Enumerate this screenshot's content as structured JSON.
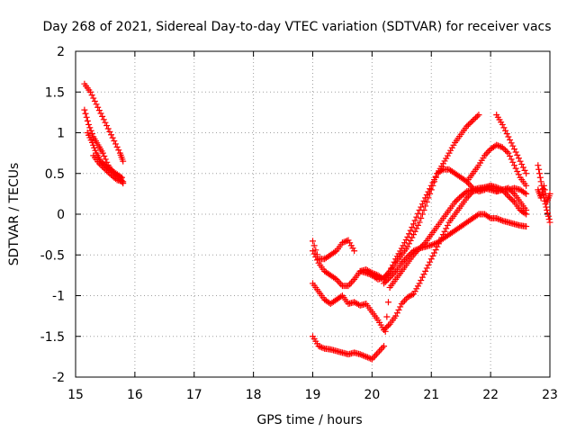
{
  "chart_data": {
    "type": "scatter",
    "title": "Day 268 of 2021, Sidereal Day-to-day VTEC variation (SDTVAR) for receiver vacs",
    "xlabel": "GPS time / hours",
    "ylabel": "SDTVAR / TECUs",
    "xlim": [
      15,
      23
    ],
    "ylim": [
      -2,
      2
    ],
    "xticks": [
      "15",
      "16",
      "17",
      "18",
      "19",
      "20",
      "21",
      "22",
      "23"
    ],
    "yticks": [
      "2",
      "1.5",
      "1",
      "0.5",
      "0",
      "-0.5",
      "-1",
      "-1.5",
      "-2"
    ],
    "grid": true,
    "marker": "plus",
    "color": "#ff0000",
    "series": [
      {
        "name": "s1",
        "x": [
          15.15,
          15.25,
          15.35,
          15.45,
          15.55,
          15.65,
          15.75,
          15.8
        ],
        "y": [
          1.6,
          1.5,
          1.35,
          1.2,
          1.05,
          0.9,
          0.75,
          0.65
        ]
      },
      {
        "name": "s2",
        "x": [
          15.15,
          15.22,
          15.3,
          15.38,
          15.46,
          15.55,
          15.65,
          15.75,
          15.8
        ],
        "y": [
          1.28,
          1.1,
          0.95,
          0.85,
          0.75,
          0.6,
          0.5,
          0.45,
          0.38
        ]
      },
      {
        "name": "s3",
        "x": [
          15.2,
          15.28,
          15.35,
          15.42,
          15.5,
          15.58,
          15.68,
          15.78
        ],
        "y": [
          1.0,
          0.88,
          0.75,
          0.65,
          0.6,
          0.55,
          0.5,
          0.45
        ]
      },
      {
        "name": "s4",
        "x": [
          15.3,
          15.4,
          15.5,
          15.6,
          15.7,
          15.8
        ],
        "y": [
          0.72,
          0.62,
          0.55,
          0.48,
          0.42,
          0.4
        ]
      },
      {
        "name": "s5",
        "x": [
          19.0,
          19.1,
          19.2,
          19.3,
          19.4,
          19.5,
          19.6,
          19.7
        ],
        "y": [
          -0.33,
          -0.55,
          -0.55,
          -0.5,
          -0.45,
          -0.35,
          -0.32,
          -0.45
        ]
      },
      {
        "name": "s6",
        "x": [
          19.0,
          19.1,
          19.2,
          19.3,
          19.4,
          19.5,
          19.6,
          19.7,
          19.8,
          19.9,
          20.0,
          20.1,
          20.2,
          20.3,
          20.4,
          20.5,
          20.6,
          20.7,
          20.8,
          20.9,
          21.0,
          21.1,
          21.2,
          21.3,
          21.4,
          21.5,
          21.6,
          21.7,
          21.8
        ],
        "y": [
          -0.45,
          -0.6,
          -0.7,
          -0.75,
          -0.8,
          -0.88,
          -0.88,
          -0.8,
          -0.7,
          -0.68,
          -0.72,
          -0.75,
          -0.8,
          -0.7,
          -0.55,
          -0.42,
          -0.28,
          -0.12,
          0.05,
          0.2,
          0.35,
          0.5,
          0.62,
          0.75,
          0.88,
          0.98,
          1.08,
          1.15,
          1.22
        ]
      },
      {
        "name": "s7",
        "x": [
          19.0,
          19.1,
          19.2,
          19.3,
          19.4,
          19.5,
          19.6,
          19.7,
          19.8,
          19.9,
          20.0,
          20.1,
          20.2
        ],
        "y": [
          -0.85,
          -0.95,
          -1.05,
          -1.1,
          -1.05,
          -1.0,
          -1.1,
          -1.08,
          -1.12,
          -1.1,
          -1.2,
          -1.3,
          -1.42
        ]
      },
      {
        "name": "s8",
        "x": [
          20.2,
          20.3,
          20.4,
          20.5,
          20.6,
          20.7,
          20.8,
          20.9,
          21.0,
          21.1,
          21.2,
          21.3,
          21.4,
          21.5,
          21.6,
          21.7,
          21.8,
          21.9,
          22.0,
          22.1,
          22.2,
          22.3,
          22.4,
          22.5,
          22.6
        ],
        "y": [
          -1.42,
          -1.35,
          -1.25,
          -1.1,
          -1.02,
          -0.98,
          -0.85,
          -0.7,
          -0.55,
          -0.4,
          -0.25,
          -0.1,
          0.0,
          0.1,
          0.2,
          0.28,
          0.3,
          0.32,
          0.3,
          0.28,
          0.3,
          0.32,
          0.25,
          0.15,
          0.05
        ]
      },
      {
        "name": "s9",
        "x": [
          19.0,
          19.1,
          19.2,
          19.3,
          19.4,
          19.5,
          19.6,
          19.7,
          19.8,
          19.9,
          20.0,
          20.1,
          20.2,
          20.3,
          20.4,
          20.5,
          20.6,
          20.7,
          20.8,
          20.9,
          21.0,
          21.1,
          21.2,
          21.3,
          21.4,
          21.5,
          21.6,
          21.7,
          21.8,
          21.9,
          22.0,
          22.1,
          22.2,
          22.3,
          22.4,
          22.5,
          22.6
        ],
        "y": [
          -1.5,
          -1.62,
          -1.65,
          -1.66,
          -1.68,
          -1.7,
          -1.72,
          -1.7,
          -1.72,
          -1.75,
          -1.78,
          -1.7,
          -1.62,
          -0.9,
          -0.8,
          -0.7,
          -0.6,
          -0.5,
          -0.42,
          -0.35,
          -0.25,
          -0.15,
          -0.05,
          0.05,
          0.15,
          0.22,
          0.28,
          0.3,
          0.32,
          0.33,
          0.35,
          0.33,
          0.3,
          0.22,
          0.15,
          0.05,
          0.0
        ]
      },
      {
        "name": "s10",
        "x": [
          19.8,
          19.9,
          20.0,
          20.1,
          20.2,
          20.3,
          20.4,
          20.5,
          20.6,
          20.7,
          20.8,
          20.9,
          21.0,
          21.1,
          21.2,
          21.3,
          21.4,
          21.5,
          21.6,
          21.7,
          21.8,
          21.9,
          22.0,
          22.1,
          22.2,
          22.3,
          22.4,
          22.5,
          22.6
        ],
        "y": [
          -0.7,
          -0.72,
          -0.75,
          -0.8,
          -0.78,
          -0.7,
          -0.6,
          -0.5,
          -0.4,
          -0.25,
          -0.1,
          0.1,
          0.3,
          0.5,
          0.55,
          0.55,
          0.5,
          0.45,
          0.4,
          0.32,
          0.28,
          0.3,
          0.35,
          0.28,
          0.3,
          0.3,
          0.32,
          0.3,
          0.25
        ]
      },
      {
        "name": "s11",
        "x": [
          20.2,
          20.3,
          20.4,
          20.5,
          20.6,
          20.7,
          20.8,
          20.9,
          21.0,
          21.1,
          21.2,
          21.3,
          21.4,
          21.5,
          21.6,
          21.7,
          21.8,
          21.9,
          22.0,
          22.1,
          22.2,
          22.3,
          22.4,
          22.5,
          22.6
        ],
        "y": [
          -0.85,
          -0.78,
          -0.7,
          -0.6,
          -0.52,
          -0.45,
          -0.42,
          -0.4,
          -0.38,
          -0.35,
          -0.3,
          -0.25,
          -0.2,
          -0.15,
          -0.1,
          -0.05,
          0.0,
          0.0,
          -0.05,
          -0.05,
          -0.08,
          -0.1,
          -0.12,
          -0.14,
          -0.15
        ]
      },
      {
        "name": "s12",
        "x": [
          21.6,
          21.7,
          21.8,
          21.9,
          22.0,
          22.1,
          22.2,
          22.3,
          22.4,
          22.5,
          22.6
        ],
        "y": [
          0.4,
          0.5,
          0.6,
          0.72,
          0.8,
          0.85,
          0.82,
          0.75,
          0.6,
          0.45,
          0.35
        ]
      },
      {
        "name": "s13",
        "x": [
          22.1,
          22.2,
          22.3,
          22.4,
          22.5,
          22.6
        ],
        "y": [
          1.22,
          1.1,
          0.95,
          0.8,
          0.65,
          0.5
        ]
      },
      {
        "name": "s14",
        "x": [
          22.8,
          22.85,
          22.9,
          22.95,
          23.0
        ],
        "y": [
          0.6,
          0.4,
          0.2,
          0.05,
          -0.1
        ]
      },
      {
        "name": "s15",
        "x": [
          22.8,
          22.85,
          22.9,
          22.95,
          23.0
        ],
        "y": [
          0.3,
          0.2,
          0.35,
          0.15,
          0.25
        ]
      }
    ]
  }
}
